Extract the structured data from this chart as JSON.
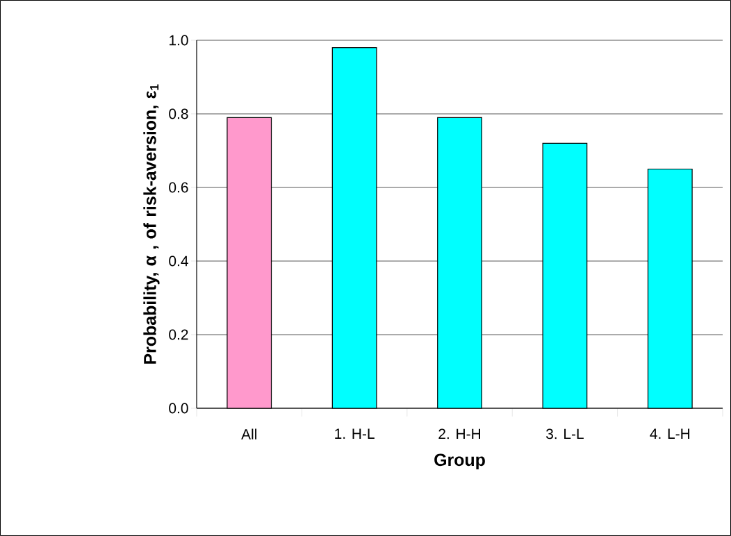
{
  "chart_data": {
    "type": "bar",
    "xlabel": "Group",
    "ylabel": "Probability, α , of risk-aversion, ε$_{1}$",
    "categories": [
      "All",
      "1.  H-L",
      "2.  H-H",
      "3. L-L",
      "4.  L-H"
    ],
    "values": [
      0.79,
      0.98,
      0.79,
      0.72,
      0.65
    ],
    "colors": [
      "#ff99cc",
      "#00ffff",
      "#00ffff",
      "#00ffff",
      "#00ffff"
    ],
    "ylim": [
      0,
      1.0
    ],
    "yticks": [
      {
        "value": 0,
        "label": "0.0"
      },
      {
        "value": 0.2,
        "label": "0.2"
      },
      {
        "value": 0.4,
        "label": "0.4"
      },
      {
        "value": 0.6,
        "label": "0.6"
      },
      {
        "value": 0.8,
        "label": "0.8"
      },
      {
        "value": 1.0,
        "label": "1.0"
      }
    ],
    "grid": "y"
  }
}
